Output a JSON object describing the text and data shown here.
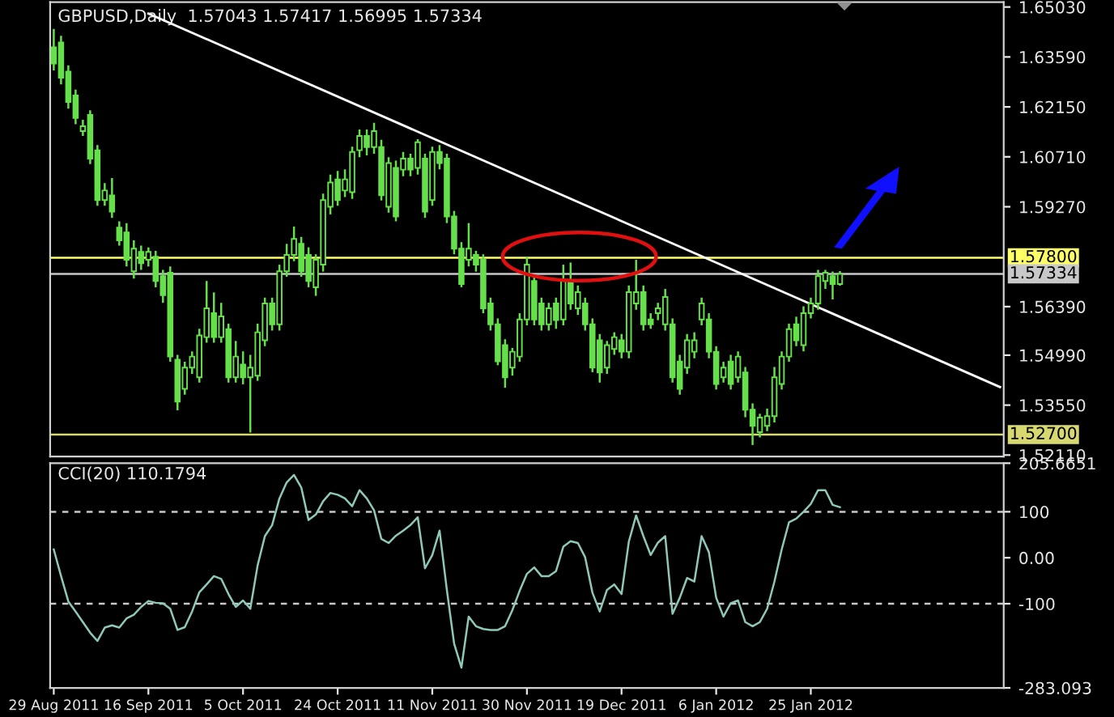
{
  "chart_data": [
    {
      "type": "candlestick",
      "title": "GBPUSD,Daily  1.57043 1.57417 1.56995 1.57334",
      "color": "#66e04a",
      "categories": [
        null,
        null,
        null,
        null,
        null,
        null,
        null,
        null,
        null,
        null,
        null,
        null,
        null,
        null,
        null,
        null,
        null,
        null,
        null,
        null,
        null,
        null,
        null,
        null,
        null,
        null,
        null,
        null,
        null,
        null,
        null,
        null,
        null,
        null,
        null,
        null,
        null,
        null,
        null,
        null,
        null,
        null,
        null,
        null,
        null,
        null,
        null,
        null,
        null,
        null,
        null,
        null,
        null,
        null,
        null,
        null,
        null,
        null,
        null,
        null,
        null,
        null,
        null,
        null,
        null,
        null,
        null,
        null,
        null,
        null,
        null,
        null,
        null,
        null,
        null,
        null,
        null,
        null,
        null,
        null,
        null,
        null,
        null,
        null,
        null,
        null,
        null,
        null,
        null,
        null,
        null,
        null,
        null,
        null,
        null,
        null,
        null,
        null,
        null,
        null,
        null,
        null,
        null,
        null,
        null,
        null,
        null,
        null,
        null,
        null,
        null,
        null,
        null,
        null,
        null,
        null,
        null,
        null,
        null,
        null,
        null,
        null,
        null,
        null,
        null,
        null,
        null,
        null,
        null,
        null,
        null
      ],
      "ohlc": [
        [
          1.6387,
          1.644,
          1.632,
          1.634
        ],
        [
          1.6401,
          1.642,
          1.628,
          1.6299
        ],
        [
          1.6317,
          1.6335,
          1.621,
          1.6229
        ],
        [
          1.6248,
          1.6265,
          1.6165,
          1.6183
        ],
        [
          1.6145,
          1.6178,
          1.6131,
          1.6159
        ],
        [
          1.6192,
          1.6205,
          1.605,
          1.6066
        ],
        [
          1.609,
          1.6105,
          1.593,
          1.5946
        ],
        [
          1.5946,
          1.5995,
          1.593,
          1.5974
        ],
        [
          1.596,
          1.601,
          1.5895,
          1.5913
        ],
        [
          1.5867,
          1.5885,
          1.5815,
          1.583
        ],
        [
          1.5853,
          1.588,
          1.5755,
          1.5774
        ],
        [
          1.5741,
          1.583,
          1.572,
          1.5806
        ],
        [
          1.5797,
          1.5815,
          1.5745,
          1.5764
        ],
        [
          1.5774,
          1.581,
          1.5755,
          1.5797
        ],
        [
          1.5783,
          1.58,
          1.5695,
          1.5713
        ],
        [
          1.5727,
          1.5745,
          1.565,
          1.5672
        ],
        [
          1.5737,
          1.5755,
          1.548,
          1.5495
        ],
        [
          1.5486,
          1.55,
          1.534,
          1.5365
        ],
        [
          1.5402,
          1.548,
          1.5385,
          1.5463
        ],
        [
          1.5463,
          1.551,
          1.5445,
          1.5495
        ],
        [
          1.5435,
          1.5575,
          1.542,
          1.5556
        ],
        [
          1.5551,
          1.5713,
          1.5535,
          1.5634
        ],
        [
          1.562,
          1.568,
          1.5535,
          1.5551
        ],
        [
          1.5551,
          1.565,
          1.5535,
          1.5611
        ],
        [
          1.5574,
          1.559,
          1.542,
          1.5435
        ],
        [
          1.5435,
          1.554,
          1.542,
          1.5495
        ],
        [
          1.5472,
          1.551,
          1.5415,
          1.5435
        ],
        [
          1.5435,
          1.55,
          1.5276,
          1.5463
        ],
        [
          1.544,
          1.559,
          1.5425,
          1.5565
        ],
        [
          1.5542,
          1.5665,
          1.5525,
          1.5648
        ],
        [
          1.5648,
          1.5665,
          1.557,
          1.5588
        ],
        [
          1.5588,
          1.576,
          1.557,
          1.5741
        ],
        [
          1.5741,
          1.582,
          1.5725,
          1.5788
        ],
        [
          1.5788,
          1.587,
          1.577,
          1.5834
        ],
        [
          1.582,
          1.584,
          1.5725,
          1.5741
        ],
        [
          1.5788,
          1.581,
          1.5695,
          1.5713
        ],
        [
          1.5695,
          1.579,
          1.567,
          1.5774
        ],
        [
          1.576,
          1.5965,
          1.574,
          1.5946
        ],
        [
          1.5927,
          1.602,
          1.5905,
          1.5997
        ],
        [
          1.6006,
          1.603,
          1.593,
          1.5946
        ],
        [
          1.5974,
          1.6035,
          1.5955,
          1.6006
        ],
        [
          1.5969,
          1.61,
          1.595,
          1.6085
        ],
        [
          1.609,
          1.615,
          1.607,
          1.6131
        ],
        [
          1.6131,
          1.615,
          1.6075,
          1.6099
        ],
        [
          1.6099,
          1.6169,
          1.608,
          1.6145
        ],
        [
          1.6099,
          1.612,
          1.5945,
          1.596
        ],
        [
          1.5927,
          1.607,
          1.591,
          1.6053
        ],
        [
          1.6039,
          1.606,
          1.5885,
          1.5899
        ],
        [
          1.6034,
          1.6085,
          1.6015,
          1.6066
        ],
        [
          1.6066,
          1.608,
          1.6015,
          1.6034
        ],
        [
          1.6039,
          1.6122,
          1.602,
          1.6113
        ],
        [
          1.6066,
          1.608,
          1.5895,
          1.5913
        ],
        [
          1.5946,
          1.61,
          1.593,
          1.6085
        ],
        [
          1.6085,
          1.6105,
          1.6035,
          1.6053
        ],
        [
          1.6066,
          1.608,
          1.588,
          1.5899
        ],
        [
          1.5899,
          1.5915,
          1.579,
          1.5806
        ],
        [
          1.5806,
          1.5825,
          1.5695,
          1.5704
        ],
        [
          1.5774,
          1.588,
          1.5755,
          1.5806
        ],
        [
          1.5788,
          1.58,
          1.574,
          1.576
        ],
        [
          1.5774,
          1.579,
          1.562,
          1.5634
        ],
        [
          1.5648,
          1.5665,
          1.557,
          1.5588
        ],
        [
          1.5588,
          1.5605,
          1.547,
          1.5481
        ],
        [
          1.5528,
          1.5545,
          1.5405,
          1.5435
        ],
        [
          1.5463,
          1.552,
          1.544,
          1.5509
        ],
        [
          1.5495,
          1.562,
          1.548,
          1.5602
        ],
        [
          1.5602,
          1.5783,
          1.5585,
          1.576
        ],
        [
          1.5713,
          1.573,
          1.5585,
          1.5602
        ],
        [
          1.5648,
          1.5665,
          1.557,
          1.5588
        ],
        [
          1.5588,
          1.565,
          1.557,
          1.5634
        ],
        [
          1.5648,
          1.5665,
          1.5575,
          1.56
        ],
        [
          1.5602,
          1.576,
          1.5585,
          1.5713
        ],
        [
          1.5713,
          1.5766,
          1.563,
          1.5648
        ],
        [
          1.5634,
          1.57,
          1.5615,
          1.5681
        ],
        [
          1.5648,
          1.5665,
          1.557,
          1.5588
        ],
        [
          1.5588,
          1.5605,
          1.545,
          1.5463
        ],
        [
          1.5542,
          1.556,
          1.542,
          1.5449
        ],
        [
          1.5463,
          1.554,
          1.5445,
          1.5528
        ],
        [
          1.5517,
          1.5565,
          1.55,
          1.5551
        ],
        [
          1.5542,
          1.556,
          1.549,
          1.5509
        ],
        [
          1.5509,
          1.57,
          1.549,
          1.5681
        ],
        [
          1.5648,
          1.5774,
          1.563,
          1.5681
        ],
        [
          1.5681,
          1.57,
          1.557,
          1.5588
        ],
        [
          1.5602,
          1.562,
          1.5575,
          1.5588
        ],
        [
          1.562,
          1.565,
          1.56,
          1.5634
        ],
        [
          1.5588,
          1.569,
          1.557,
          1.5667
        ],
        [
          1.5588,
          1.5605,
          1.542,
          1.5435
        ],
        [
          1.5481,
          1.55,
          1.5385,
          1.5402
        ],
        [
          1.5463,
          1.556,
          1.5445,
          1.5542
        ],
        [
          1.5509,
          1.5565,
          1.549,
          1.5542
        ],
        [
          1.5602,
          1.5665,
          1.5585,
          1.5648
        ],
        [
          1.5602,
          1.562,
          1.549,
          1.5509
        ],
        [
          1.5509,
          1.5525,
          1.54,
          1.5416
        ],
        [
          1.5435,
          1.548,
          1.542,
          1.5463
        ],
        [
          1.5481,
          1.55,
          1.54,
          1.5416
        ],
        [
          1.5435,
          1.551,
          1.542,
          1.5495
        ],
        [
          1.5449,
          1.5465,
          1.532,
          1.5342
        ],
        [
          1.5342,
          1.536,
          1.524,
          1.5295
        ],
        [
          1.5277,
          1.533,
          1.5262,
          1.5319
        ],
        [
          1.5295,
          1.5345,
          1.528,
          1.5323
        ],
        [
          1.5323,
          1.5465,
          1.5305,
          1.5435
        ],
        [
          1.5416,
          1.551,
          1.54,
          1.5495
        ],
        [
          1.5495,
          1.559,
          1.548,
          1.5574
        ],
        [
          1.5588,
          1.561,
          1.5525,
          1.5542
        ],
        [
          1.5528,
          1.564,
          1.551,
          1.562
        ],
        [
          1.562,
          1.5665,
          1.5605,
          1.5648
        ],
        [
          1.5648,
          1.5745,
          1.563,
          1.5727
        ],
        [
          1.5713,
          1.5745,
          1.569,
          1.5737
        ],
        [
          1.5727,
          1.574,
          1.566,
          1.5704
        ],
        [
          1.57043,
          1.57417,
          1.56995,
          1.57334
        ],
        null,
        null,
        null,
        null,
        null,
        null,
        null,
        null,
        null,
        null,
        null,
        null,
        null,
        null,
        null,
        null,
        null,
        null,
        null,
        null,
        null,
        null
      ],
      "series": [
        {
          "type": "line",
          "color": "#ffffff",
          "values": [
            null,
            null,
            null,
            null,
            null,
            null,
            null,
            null,
            null,
            null,
            null,
            null,
            null,
            1.6484,
            null,
            null,
            null,
            null,
            null,
            null,
            null,
            null,
            null,
            null,
            null,
            null,
            null,
            null,
            null,
            null,
            null,
            null,
            null,
            null,
            null,
            null,
            null,
            null,
            null,
            null,
            null,
            null,
            null,
            null,
            null,
            null,
            null,
            null,
            null,
            null,
            null,
            null,
            null,
            null,
            null,
            null,
            null,
            null,
            null,
            null,
            null,
            null,
            null,
            null,
            null,
            null,
            null,
            null,
            null,
            null,
            null,
            null,
            null,
            null,
            null,
            null,
            null,
            null,
            null,
            null,
            null,
            null,
            null,
            null,
            null,
            null,
            null,
            null,
            null,
            null,
            null,
            null,
            null,
            null,
            null,
            null,
            null,
            null,
            null,
            null,
            null,
            null,
            null,
            null,
            null,
            null,
            null,
            null,
            null,
            null,
            null,
            null,
            null,
            null,
            null,
            null,
            null,
            null,
            null,
            null,
            null,
            null,
            null,
            null,
            null,
            null,
            null,
            null,
            null,
            null,
            1.5407
          ]
        }
      ],
      "ylim": [
        1.5207,
        1.6517
      ],
      "yticks": [
        {
          "value": 1.6503,
          "label": "1.65030"
        },
        {
          "value": 1.6359,
          "label": "1.63590"
        },
        {
          "value": 1.6215,
          "label": "1.62150"
        },
        {
          "value": 1.6071,
          "label": "1.60710"
        },
        {
          "value": 1.5927,
          "label": "1.59270"
        },
        {
          "value": 1.5639,
          "label": "1.56390"
        },
        {
          "value": 1.5499,
          "label": "1.54990"
        },
        {
          "value": 1.5355,
          "label": "1.53550"
        },
        {
          "value": 1.5211,
          "label": "1.52110"
        }
      ],
      "ref_lines": [
        {
          "axis": "y",
          "value": 1.578,
          "label": "1.57800",
          "color": "#ffff66"
        },
        {
          "axis": "y",
          "value": 1.57334,
          "label": "1.57334",
          "color": "#c8c8c8"
        },
        {
          "axis": "y",
          "value": 1.527,
          "label": "1.52700",
          "color": "#d8d870"
        }
      ],
      "tick_labels": "y"
    },
    {
      "type": "line",
      "title": "CCI(20) 110.1794",
      "categories": [
        "29 Aug 2011",
        null,
        null,
        null,
        null,
        null,
        null,
        null,
        null,
        null,
        null,
        null,
        null,
        "16 Sep 2011",
        null,
        null,
        null,
        null,
        null,
        null,
        null,
        null,
        null,
        null,
        null,
        null,
        "5 Oct 2011",
        null,
        null,
        null,
        null,
        null,
        null,
        null,
        null,
        null,
        null,
        null,
        null,
        "24 Oct 2011",
        null,
        null,
        null,
        null,
        null,
        null,
        null,
        null,
        null,
        null,
        null,
        null,
        "11 Nov 2011",
        null,
        null,
        null,
        null,
        null,
        null,
        null,
        null,
        null,
        null,
        null,
        null,
        "30 Nov 2011",
        null,
        null,
        null,
        null,
        null,
        null,
        null,
        null,
        null,
        null,
        null,
        null,
        "19 Dec 2011",
        null,
        null,
        null,
        null,
        null,
        null,
        null,
        null,
        null,
        null,
        null,
        null,
        "6 Jan 2012",
        null,
        null,
        null,
        null,
        null,
        null,
        null,
        null,
        null,
        null,
        null,
        null,
        "25 Jan 2012",
        null,
        null,
        null,
        null,
        null,
        null,
        null,
        null,
        null,
        null,
        null,
        null,
        null,
        null,
        null,
        null,
        null,
        null,
        null,
        null,
        null,
        null,
        null,
        null,
        null,
        null
      ],
      "series": [
        {
          "color": "#8fc7b8",
          "values": [
            18,
            -40,
            -95,
            -117,
            -140,
            -163,
            -181,
            -152,
            -147,
            -152,
            -132,
            -124,
            -107,
            -94,
            -98,
            -99,
            -111,
            -157,
            -151,
            -117,
            -75,
            -58,
            -40,
            -46,
            -79,
            -107,
            -93,
            -111,
            -17,
            47,
            71,
            129,
            164,
            180,
            153,
            82,
            94,
            123,
            141,
            137,
            129,
            112,
            147,
            129,
            103,
            41,
            32,
            48,
            59,
            71,
            88,
            -23,
            6,
            59,
            -70,
            -187,
            -239,
            -128,
            -149,
            -155,
            -157,
            -157,
            -149,
            -114,
            -72,
            -35,
            -21,
            -40,
            -40,
            -29,
            24,
            36,
            32,
            1,
            -76,
            -117,
            -70,
            -58,
            -79,
            35,
            92,
            47,
            6,
            33,
            47,
            -122,
            -87,
            -44,
            -52,
            47,
            12,
            -87,
            -128,
            -99,
            -93,
            -140,
            -149,
            -140,
            -111,
            -52,
            18,
            77,
            85,
            100,
            117,
            147,
            147,
            115,
            110,
            null,
            null,
            null,
            null,
            null,
            null,
            null,
            null,
            null,
            null,
            null,
            null,
            null,
            null,
            null,
            null,
            null,
            null,
            null,
            null,
            null,
            null
          ]
        }
      ],
      "ylim": [
        -283.093,
        205.6651
      ],
      "yticks": [
        {
          "value": 205.6651,
          "label": "205.6651"
        },
        100,
        {
          "value": 0,
          "label": "0.00"
        },
        -100,
        {
          "value": -283.093,
          "label": "-283.093"
        }
      ],
      "ref_lines": [
        {
          "axis": "y",
          "value": 100,
          "color": "#c8c8c8",
          "line_style": "dashed"
        },
        {
          "axis": "y",
          "value": -100,
          "color": "#c8c8c8",
          "line_style": "dashed"
        }
      ]
    }
  ]
}
